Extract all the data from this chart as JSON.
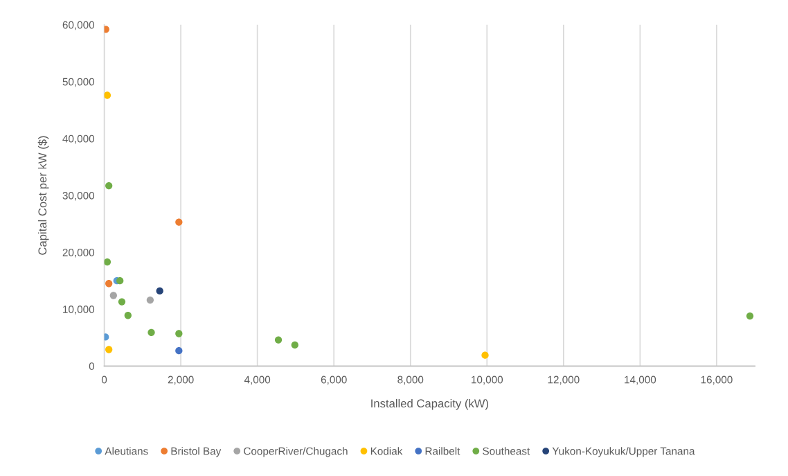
{
  "chart_data": {
    "type": "scatter",
    "xlabel": "Installed Capacity (kW)",
    "ylabel": "Capital Cost per kW ($)",
    "xlim": [
      0,
      17000
    ],
    "xticks": [
      0,
      {
        "value": 2000,
        "label": "2,000"
      },
      {
        "value": 4000,
        "label": "4,000"
      },
      {
        "value": 6000,
        "label": "6,000"
      },
      {
        "value": 8000,
        "label": "8,000"
      },
      {
        "value": 10000,
        "label": "10,000"
      },
      {
        "value": 12000,
        "label": "12,000"
      },
      {
        "value": 14000,
        "label": "14,000"
      },
      {
        "value": 16000,
        "label": "16,000"
      }
    ],
    "ylim": [
      0,
      60000
    ],
    "yticks": [
      0,
      {
        "value": 10000,
        "label": "10,000"
      },
      {
        "value": 20000,
        "label": "20,000"
      },
      {
        "value": 30000,
        "label": "30,000"
      },
      {
        "value": 40000,
        "label": "40,000"
      },
      {
        "value": 50000,
        "label": "50,000"
      },
      {
        "value": 60000,
        "label": "60,000"
      }
    ],
    "grid": "x",
    "legend": "bottom",
    "marker": "circle",
    "series": [
      {
        "name": "Aleutians",
        "color": "#5b9bd5",
        "x": [
          330,
          30
        ],
        "values": [
          15000,
          5100
        ]
      },
      {
        "name": "Bristol Bay",
        "color": "#ed7d31",
        "x": [
          40,
          1950,
          120
        ],
        "values": [
          59200,
          25300,
          14500
        ]
      },
      {
        "name": "CooperRiver/Chugach",
        "color": "#a5a5a5",
        "x": [
          240,
          1200
        ],
        "values": [
          12400,
          11600
        ]
      },
      {
        "name": "Kodiak",
        "color": "#ffc000",
        "x": [
          80,
          120,
          9950
        ],
        "values": [
          47600,
          2900,
          1900
        ]
      },
      {
        "name": "Railbelt",
        "color": "#4472c4",
        "x": [
          1950
        ],
        "values": [
          2700
        ]
      },
      {
        "name": "Southeast",
        "color": "#70ad47",
        "x": [
          120,
          80,
          410,
          460,
          620,
          1230,
          1950,
          4550,
          4980,
          16870
        ],
        "values": [
          31700,
          18300,
          15000,
          11300,
          8900,
          5900,
          5700,
          4600,
          3700,
          8800
        ]
      },
      {
        "name": "Yukon-Koyukuk/Upper Tanana",
        "color": "#264478",
        "x": [
          1450
        ],
        "values": [
          13200
        ]
      }
    ]
  }
}
